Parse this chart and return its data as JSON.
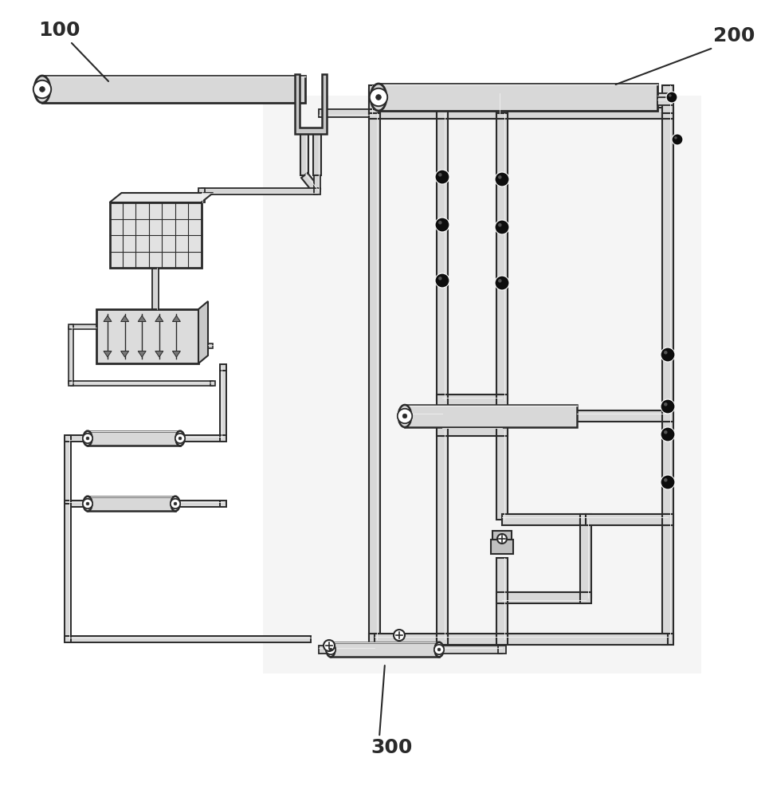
{
  "bg_color": "#ffffff",
  "line_color": "#2a2a2a",
  "fill_light": "#e8e8e8",
  "fill_mid": "#d4d4d4",
  "fill_dark": "#c0c0c0",
  "label_100": "100",
  "label_200": "200",
  "label_300": "300",
  "pipe_color": "#d8d8d8",
  "pipe_edge": "#1a1a1a",
  "valve_dark": "#111111",
  "valve_light": "#ffffff"
}
